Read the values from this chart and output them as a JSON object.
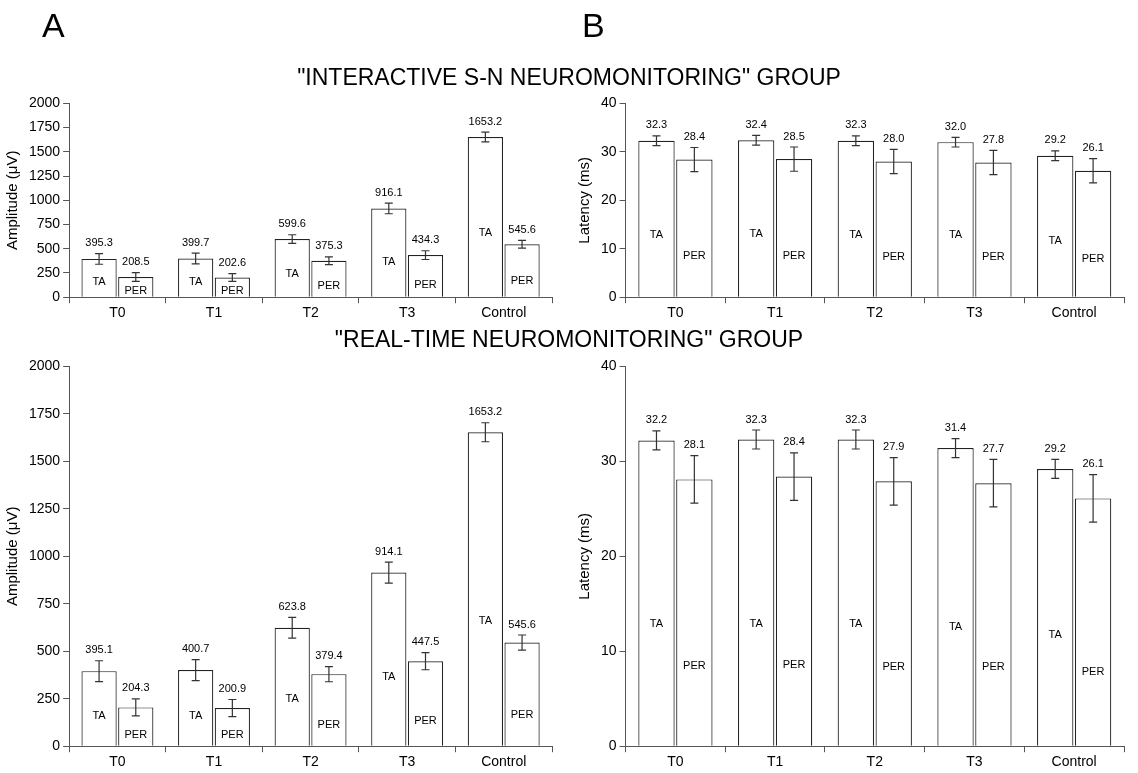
{
  "chart_data": [
    {
      "type": "bar",
      "title": "\"INTERACTIVE S-N NEUROMONITORING\" GROUP",
      "annotations": [
        "A"
      ],
      "ylabel": "Amplitude (μV)",
      "categories": [
        "T0",
        "T1",
        "T2",
        "T3",
        "Control"
      ],
      "ylim": [
        0,
        2000
      ],
      "yticks": [
        0,
        250,
        500,
        750,
        1000,
        1250,
        1500,
        1750,
        2000
      ],
      "series": [
        {
          "name": "TA",
          "color": "#ffffff",
          "values": [
            395.3,
            399.7,
            599.6,
            916.1,
            1653.2
          ],
          "value_labels": [
            "395.3",
            "399.7",
            "599.6",
            "916.1",
            "1653.2"
          ],
          "errors": [
            55,
            55,
            45,
            55,
            50
          ]
        },
        {
          "name": "PER",
          "color": "#ffffff",
          "values": [
            208.5,
            202.6,
            375.3,
            434.3,
            545.6
          ],
          "value_labels": [
            "208.5",
            "202.6",
            "375.3",
            "434.3",
            "545.6"
          ],
          "errors": [
            45,
            40,
            40,
            45,
            40
          ]
        }
      ]
    },
    {
      "type": "bar",
      "annotations": [
        "B"
      ],
      "ylabel": "Latency (ms)",
      "categories": [
        "T0",
        "T1",
        "T2",
        "T3",
        "Control"
      ],
      "ylim": [
        0,
        40
      ],
      "yticks": [
        0,
        10,
        20,
        30,
        40
      ],
      "series": [
        {
          "name": "TA",
          "color": "#ffffff",
          "values": [
            32.3,
            32.4,
            32.3,
            32.0,
            29.2
          ],
          "value_labels": [
            "32.3",
            "32.4",
            "32.3",
            "32.0",
            "29.2"
          ],
          "errors": [
            1,
            1,
            1,
            1,
            1
          ]
        },
        {
          "name": "PER",
          "color": "#ffffff",
          "values": [
            28.4,
            28.5,
            28.0,
            27.8,
            26.1
          ],
          "value_labels": [
            "28.4",
            "28.5",
            "28.0",
            "27.8",
            "26.1"
          ],
          "errors": [
            2.5,
            2.5,
            2.5,
            2.5,
            2.5
          ]
        }
      ]
    },
    {
      "type": "bar",
      "title": "\"REAL-TIME NEUROMONITORING\" GROUP",
      "ylabel": "Amplitude (μV)",
      "categories": [
        "T0",
        "T1",
        "T2",
        "T3",
        "Control"
      ],
      "ylim": [
        0,
        2000
      ],
      "yticks": [
        0,
        250,
        500,
        750,
        1000,
        1250,
        1500,
        1750,
        2000
      ],
      "series": [
        {
          "name": "TA",
          "color": "#ffffff",
          "values": [
            395.1,
            400.7,
            623.8,
            914.1,
            1653.2
          ],
          "value_labels": [
            "395.1",
            "400.7",
            "623.8",
            "914.1",
            "1653.2"
          ],
          "errors": [
            55,
            55,
            55,
            55,
            50
          ]
        },
        {
          "name": "PER",
          "color": "#ffffff",
          "values": [
            204.3,
            200.9,
            379.4,
            447.5,
            545.6
          ],
          "value_labels": [
            "204.3",
            "200.9",
            "379.4",
            "447.5",
            "545.6"
          ],
          "errors": [
            45,
            45,
            40,
            45,
            40
          ]
        }
      ]
    },
    {
      "type": "bar",
      "ylabel": "Latency (ms)",
      "categories": [
        "T0",
        "T1",
        "T2",
        "T3",
        "Control"
      ],
      "ylim": [
        0,
        40
      ],
      "yticks": [
        0,
        10,
        20,
        30,
        40
      ],
      "series": [
        {
          "name": "TA",
          "color": "#ffffff",
          "values": [
            32.2,
            32.3,
            32.3,
            31.4,
            29.2
          ],
          "value_labels": [
            "32.2",
            "32.3",
            "32.3",
            "31.4",
            "29.2"
          ],
          "errors": [
            1,
            1,
            1,
            1,
            1
          ]
        },
        {
          "name": "PER",
          "color": "#ffffff",
          "values": [
            28.1,
            28.4,
            27.9,
            27.7,
            26.1
          ],
          "value_labels": [
            "28.1",
            "28.4",
            "27.9",
            "27.7",
            "26.1"
          ],
          "errors": [
            2.5,
            2.5,
            2.5,
            2.5,
            2.5
          ]
        }
      ]
    }
  ]
}
